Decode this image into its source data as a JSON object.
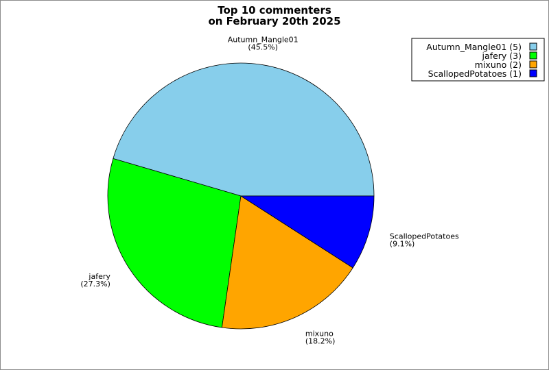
{
  "chart_data": {
    "type": "pie",
    "title": "Top 10 commenters",
    "subtitle": "on February 20th 2025",
    "slices": [
      {
        "name": "Autumn_Mangle01",
        "value": 5,
        "percent_label": "(45.5%)",
        "legend_label": "Autumn_Mangle01 (5)",
        "color": "#87ceeb"
      },
      {
        "name": "jafery",
        "value": 3,
        "percent_label": "(27.3%)",
        "legend_label": "jafery (3)",
        "color": "#00ff00"
      },
      {
        "name": "mixuno",
        "value": 2,
        "percent_label": "(18.2%)",
        "legend_label": "mixuno (2)",
        "color": "#ffa500"
      },
      {
        "name": "ScallopedPotatoes",
        "value": 1,
        "percent_label": "(9.1%)",
        "legend_label": "ScallopedPotatoes (1)",
        "color": "#0000ff"
      }
    ],
    "legend_position": "top-right"
  }
}
